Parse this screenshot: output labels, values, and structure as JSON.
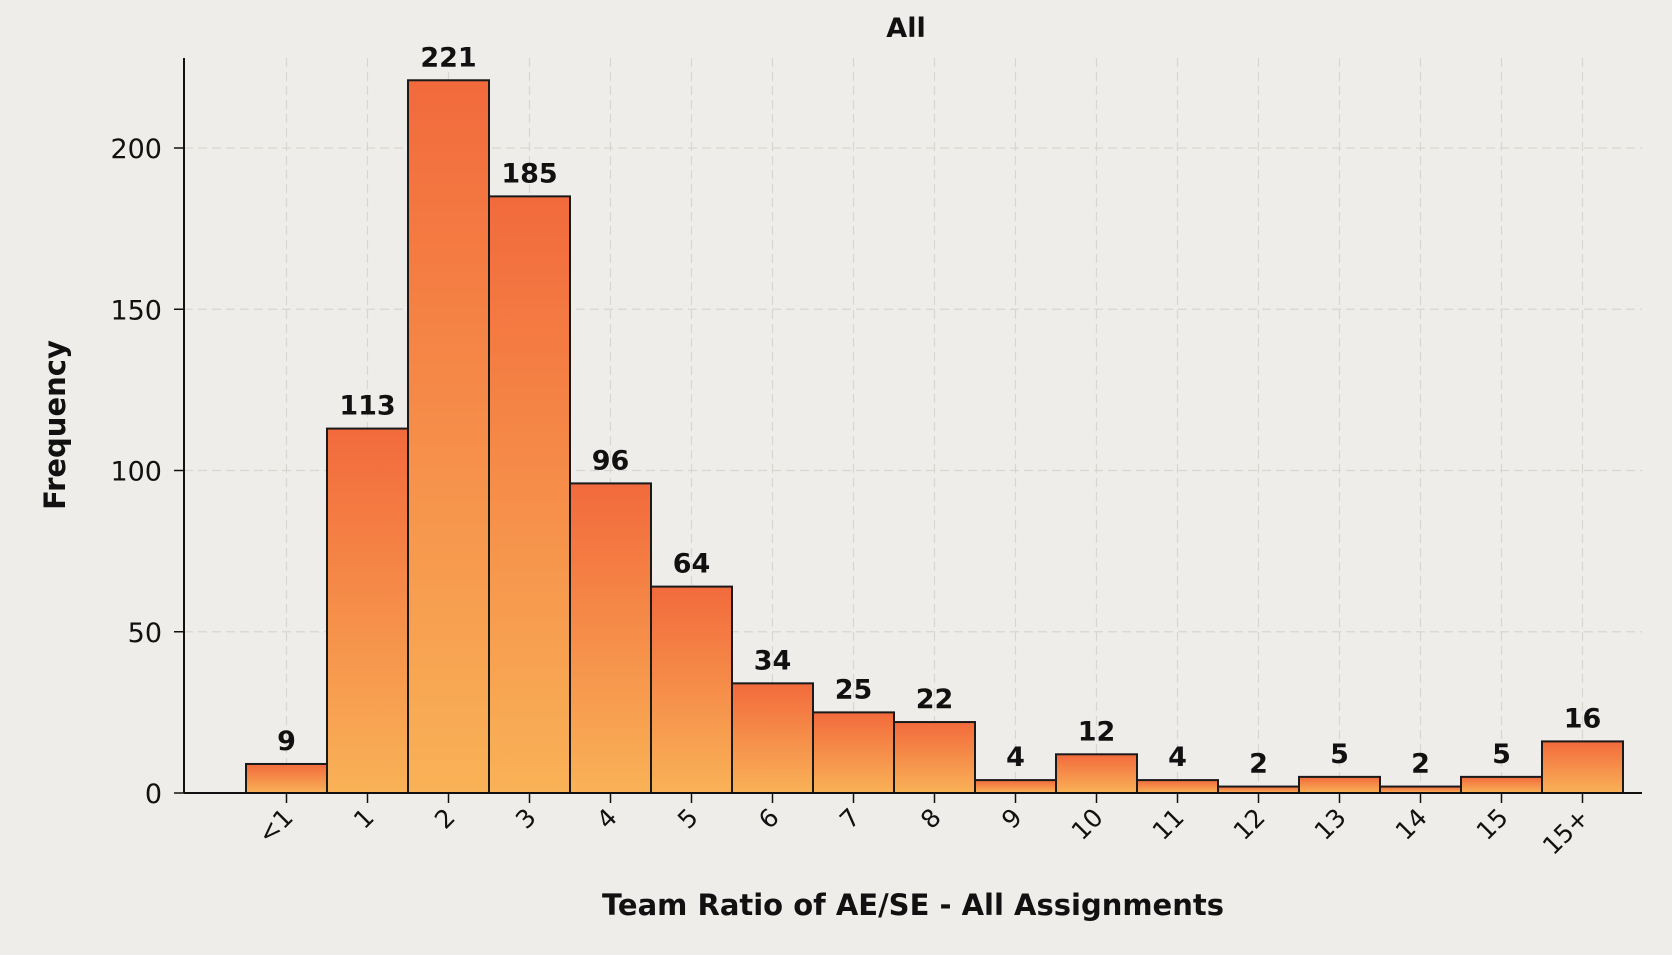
{
  "chart_data": {
    "type": "bar",
    "title": "All",
    "xlabel": "Team Ratio of AE/SE - All Assignments",
    "ylabel": "Frequency",
    "categories": [
      "<1",
      "1",
      "2",
      "3",
      "4",
      "5",
      "6",
      "7",
      "8",
      "9",
      "10",
      "11",
      "12",
      "13",
      "14",
      "15",
      "15+"
    ],
    "values": [
      9,
      113,
      221,
      185,
      96,
      64,
      34,
      25,
      22,
      4,
      12,
      4,
      2,
      5,
      2,
      5,
      16
    ],
    "ylim": [
      0,
      230
    ],
    "yticks": [
      0,
      50,
      100,
      150,
      200
    ],
    "grid": true,
    "legend": "none",
    "colors": {
      "bar_top": "#f26a3c",
      "bar_bottom": "#f9b257",
      "bar_edge": "#1a1a1a",
      "grid": "#d9d6d1",
      "background": "#efedea"
    }
  }
}
